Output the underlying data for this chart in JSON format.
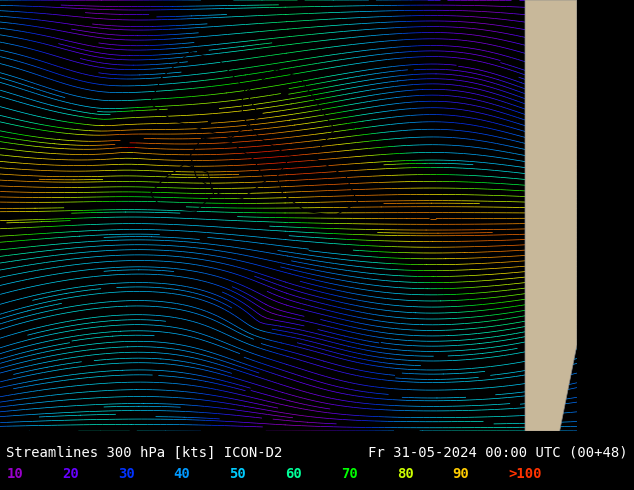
{
  "title_left": "Streamlines 300 hPa [kts] ICON-D2",
  "title_right": "Fr 31-05-2024 00:00 UTC (00+48)",
  "legend_values": [
    "10",
    "20",
    "30",
    "40",
    "50",
    "60",
    "70",
    "80",
    "90",
    ">100"
  ],
  "legend_colors": [
    "#9900cc",
    "#6600ff",
    "#0033ff",
    "#0099ff",
    "#00ccff",
    "#00ff99",
    "#00ff00",
    "#ccff00",
    "#ffcc00",
    "#ff3300"
  ],
  "bg_color": "#000000",
  "text_color": "#ffffff",
  "title_fontsize": 10,
  "legend_fontsize": 10,
  "map_bg": "#c8b89a",
  "colormap_stops": [
    [
      0.0,
      "#9900cc"
    ],
    [
      0.05,
      "#6600ff"
    ],
    [
      0.15,
      "#0033ff"
    ],
    [
      0.25,
      "#0099ff"
    ],
    [
      0.35,
      "#00ccff"
    ],
    [
      0.45,
      "#00ffcc"
    ],
    [
      0.55,
      "#00ff00"
    ],
    [
      0.65,
      "#99ff00"
    ],
    [
      0.75,
      "#ffff00"
    ],
    [
      0.85,
      "#ffaa00"
    ],
    [
      0.95,
      "#ff5500"
    ],
    [
      1.0,
      "#ff0000"
    ]
  ],
  "figsize": [
    6.34,
    4.9
  ],
  "dpi": 100
}
